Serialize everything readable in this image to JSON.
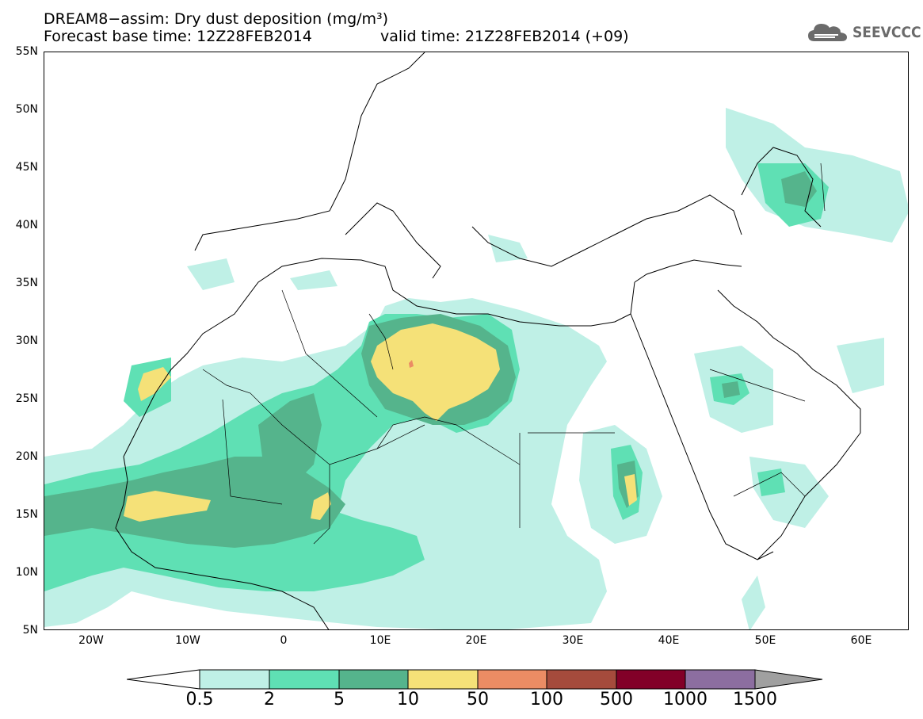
{
  "title": {
    "line1": "DREAM8−assim: Dry dust deposition (mg/m³)",
    "base_time": "Forecast base time: 12Z28FEB2014",
    "valid_time": "valid time: 21Z28FEB2014 (+09)"
  },
  "logo": {
    "text": "SEEVCCC",
    "icon": "cloud-icon"
  },
  "map": {
    "lat_labels": [
      "55N",
      "50N",
      "45N",
      "40N",
      "35N",
      "30N",
      "25N",
      "20N",
      "15N",
      "10N",
      "5N"
    ],
    "lon_labels": [
      "20W",
      "10W",
      "0",
      "10E",
      "20E",
      "30E",
      "40E",
      "50E",
      "60E"
    ],
    "lat_range": [
      5,
      55
    ],
    "lon_range": [
      -25,
      65
    ]
  },
  "legend": {
    "thresholds": [
      "0.5",
      "2",
      "5",
      "10",
      "50",
      "100",
      "500",
      "1000",
      "1500"
    ],
    "colors": [
      "#ffffff",
      "#bff0e6",
      "#5fe0b4",
      "#55b48c",
      "#f5e178",
      "#eb8c64",
      "#a54b3c",
      "#820028",
      "#8c6ea0",
      "#a0a0a0"
    ]
  }
}
